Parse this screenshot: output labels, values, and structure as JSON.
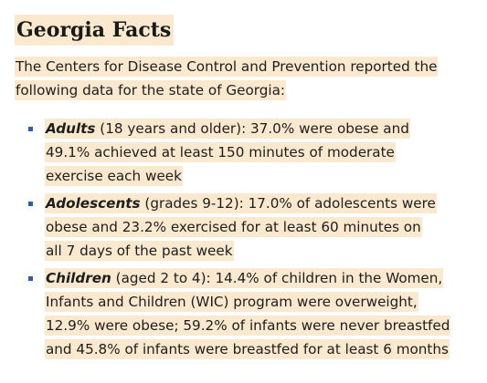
{
  "section": {
    "title": "Georgia Facts",
    "intro": "The Centers for Disease Control and Prevention reported the following data for the state of Georgia:"
  },
  "facts": [
    {
      "term": "Adults",
      "text": " (18 years and older): 37.0% were obese and 49.1% achieved at least 150 minutes of moderate exercise each week"
    },
    {
      "term": "Adolescents",
      "text": " (grades 9-12): 17.0% of adolescents were obese and 23.2% exercised for at least 60 minutes on all 7 days of the past week"
    },
    {
      "term": "Children",
      "text": " (aged 2 to 4): 14.4% of children in the Women, Infants and Children (WIC) program were overweight, 12.9% were obese; 59.2% of infants were never breastfed and 45.8% of infants were breastfed for at least 6 months"
    }
  ],
  "colors": {
    "highlight": "#fbe9cf",
    "bullet": "#2b5fab"
  }
}
